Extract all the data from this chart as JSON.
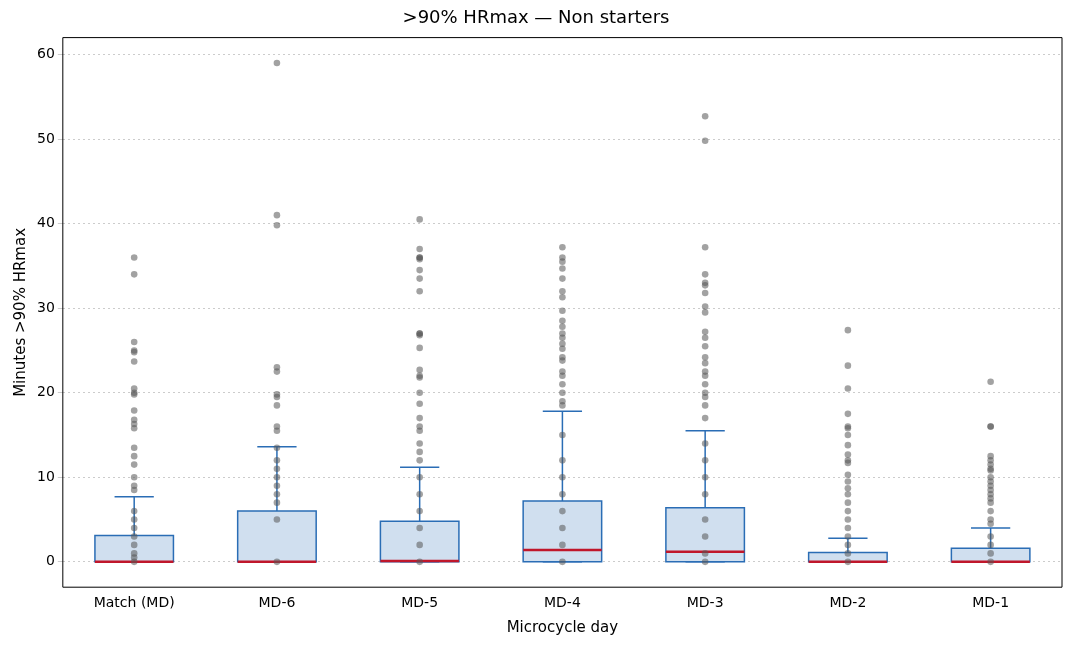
{
  "chart_data": {
    "type": "box",
    "title": ">90% HRmax — Non starters",
    "xlabel": "Microcycle day",
    "ylabel": "Minutes >90% HRmax",
    "categories": [
      "Match (MD)",
      "MD-6",
      "MD-5",
      "MD-4",
      "MD-3",
      "MD-2",
      "MD-1"
    ],
    "ylim": [
      -3,
      62
    ],
    "yticks": [
      0,
      10,
      20,
      30,
      40,
      50,
      60
    ],
    "grid": "y",
    "marker": "circle",
    "series": [
      {
        "type": "box",
        "color": "#2a6db5",
        "boxes": [
          {
            "low": 0,
            "q1": 0,
            "median": 0,
            "q3": 3.1,
            "high": 7.7
          },
          {
            "low": 0,
            "q1": 0,
            "median": 0,
            "q3": 6.0,
            "high": 13.6
          },
          {
            "low": 0,
            "q1": 0,
            "median": 0.1,
            "q3": 4.8,
            "high": 11.2
          },
          {
            "low": 0,
            "q1": 0,
            "median": 1.4,
            "q3": 7.2,
            "high": 17.8
          },
          {
            "low": 0,
            "q1": 0,
            "median": 1.2,
            "q3": 6.4,
            "high": 15.5
          },
          {
            "low": 0,
            "q1": 0,
            "median": 0,
            "q3": 1.1,
            "high": 2.8
          },
          {
            "low": 0,
            "q1": 0,
            "median": 0,
            "q3": 1.6,
            "high": 4.0
          }
        ]
      },
      {
        "type": "scatter",
        "color": "#555555",
        "x": [
          "Match (MD)",
          "Match (MD)",
          "Match (MD)",
          "Match (MD)",
          "Match (MD)",
          "Match (MD)",
          "Match (MD)",
          "Match (MD)",
          "Match (MD)",
          "Match (MD)",
          "Match (MD)",
          "Match (MD)",
          "Match (MD)",
          "Match (MD)",
          "Match (MD)",
          "Match (MD)",
          "Match (MD)",
          "Match (MD)",
          "Match (MD)",
          "Match (MD)",
          "Match (MD)",
          "Match (MD)",
          "Match (MD)",
          "Match (MD)",
          "Match (MD)",
          "Match (MD)",
          "Match (MD)",
          "MD-6",
          "MD-6",
          "MD-6",
          "MD-6",
          "MD-6",
          "MD-6",
          "MD-6",
          "MD-6",
          "MD-6",
          "MD-6",
          "MD-6",
          "MD-6",
          "MD-6",
          "MD-6",
          "MD-6",
          "MD-6",
          "MD-6",
          "MD-6",
          "MD-6",
          "MD-5",
          "MD-5",
          "MD-5",
          "MD-5",
          "MD-5",
          "MD-5",
          "MD-5",
          "MD-5",
          "MD-5",
          "MD-5",
          "MD-5",
          "MD-5",
          "MD-5",
          "MD-5",
          "MD-5",
          "MD-5",
          "MD-5",
          "MD-5",
          "MD-5",
          "MD-5",
          "MD-5",
          "MD-5",
          "MD-5",
          "MD-5",
          "MD-5",
          "MD-5",
          "MD-5",
          "MD-5",
          "MD-5",
          "MD-4",
          "MD-4",
          "MD-4",
          "MD-4",
          "MD-4",
          "MD-4",
          "MD-4",
          "MD-4",
          "MD-4",
          "MD-4",
          "MD-4",
          "MD-4",
          "MD-4",
          "MD-4",
          "MD-4",
          "MD-4",
          "MD-4",
          "MD-4",
          "MD-4",
          "MD-4",
          "MD-4",
          "MD-4",
          "MD-4",
          "MD-4",
          "MD-4",
          "MD-4",
          "MD-4",
          "MD-4",
          "MD-4",
          "MD-4",
          "MD-3",
          "MD-3",
          "MD-3",
          "MD-3",
          "MD-3",
          "MD-3",
          "MD-3",
          "MD-3",
          "MD-3",
          "MD-3",
          "MD-3",
          "MD-3",
          "MD-3",
          "MD-3",
          "MD-3",
          "MD-3",
          "MD-3",
          "MD-3",
          "MD-3",
          "MD-3",
          "MD-3",
          "MD-3",
          "MD-3",
          "MD-3",
          "MD-3",
          "MD-3",
          "MD-3",
          "MD-3",
          "MD-3",
          "MD-2",
          "MD-2",
          "MD-2",
          "MD-2",
          "MD-2",
          "MD-2",
          "MD-2",
          "MD-2",
          "MD-2",
          "MD-2",
          "MD-2",
          "MD-2",
          "MD-2",
          "MD-2",
          "MD-2",
          "MD-2",
          "MD-2",
          "MD-2",
          "MD-2",
          "MD-2",
          "MD-2",
          "MD-2",
          "MD-2",
          "MD-1",
          "MD-1",
          "MD-1",
          "MD-1",
          "MD-1",
          "MD-1",
          "MD-1",
          "MD-1",
          "MD-1",
          "MD-1",
          "MD-1",
          "MD-1",
          "MD-1",
          "MD-1",
          "MD-1",
          "MD-1",
          "MD-1",
          "MD-1",
          "MD-1",
          "MD-1",
          "MD-1",
          "MD-1"
        ],
        "values": [
          36,
          34,
          26,
          25,
          24.8,
          23.7,
          20.5,
          20,
          19.8,
          17.9,
          16.8,
          16.3,
          15.8,
          13.5,
          12.5,
          11.5,
          10,
          9,
          8.5,
          6,
          5,
          4,
          3,
          2,
          1,
          0.5,
          0,
          59,
          41,
          39.8,
          23,
          22.5,
          19.8,
          19.5,
          18.5,
          16,
          15.5,
          13.5,
          12,
          11,
          10,
          9,
          8,
          7,
          5,
          0,
          40.5,
          37,
          36,
          36,
          35.8,
          34.5,
          33.5,
          32,
          27,
          27,
          26.8,
          25.3,
          22.7,
          22,
          21.8,
          20,
          18.7,
          17,
          16,
          15.5,
          14,
          13,
          12,
          10,
          8,
          6,
          4,
          2,
          0,
          37.2,
          36,
          35.5,
          34.7,
          33.5,
          32,
          31.3,
          29.7,
          28.5,
          27.8,
          27,
          26.5,
          25.8,
          25.2,
          24.2,
          23.8,
          22.5,
          22,
          21,
          20,
          19,
          18.5,
          15,
          12,
          10,
          8,
          6,
          4,
          2,
          0,
          52.7,
          49.8,
          37.2,
          34,
          33,
          32.7,
          31.8,
          30.2,
          29.5,
          27.2,
          26.5,
          25.5,
          24.2,
          23.5,
          22.5,
          22,
          21,
          20,
          19.5,
          18.5,
          17,
          14,
          12,
          10,
          8,
          5,
          3,
          1,
          0,
          27.4,
          23.2,
          20.5,
          17.5,
          16,
          15.8,
          15,
          13.8,
          12.7,
          12,
          11.7,
          10.3,
          9.5,
          8.7,
          8,
          7,
          6,
          5,
          4,
          3,
          2,
          1,
          0,
          21.3,
          16,
          16,
          12.5,
          12,
          11.5,
          11,
          10.8,
          10,
          9.5,
          9,
          8.5,
          8,
          7.5,
          7,
          6,
          5,
          4.5,
          3,
          2,
          1,
          0
        ]
      }
    ]
  }
}
